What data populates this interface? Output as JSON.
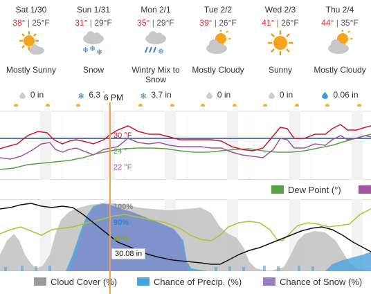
{
  "days": [
    {
      "name": "Sat 1/30",
      "hi": "38°",
      "lo": "25°F",
      "condition": "Mostly Sunny",
      "icon": "sun-cloud-icon",
      "precip": "0 in",
      "precip_icon": "drop-icon"
    },
    {
      "name": "Sun 1/31",
      "hi": "31°",
      "lo": "29°F",
      "condition": "Snow",
      "icon": "snow-cloud-icon",
      "precip": "6.3 in",
      "precip_icon": "snowflake-icon"
    },
    {
      "name": "Mon 2/1",
      "hi": "35°",
      "lo": "29°F",
      "condition": "Wintry Mix to Snow",
      "icon": "wintry-mix-icon",
      "precip": "3.7 in",
      "precip_icon": "snowflake-icon"
    },
    {
      "name": "Tue 2/2",
      "hi": "39°",
      "lo": "26°F",
      "condition": "Mostly Cloudy",
      "icon": "cloud-sun-icon",
      "precip": "0 in",
      "precip_icon": "drop-icon"
    },
    {
      "name": "Wed 2/3",
      "hi": "41°",
      "lo": "26°F",
      "condition": "Sunny",
      "icon": "sun-icon",
      "precip": "0 in",
      "precip_icon": "drop-icon"
    },
    {
      "name": "Thu 2/4",
      "hi": "44°",
      "lo": "35°F",
      "condition": "Mostly Cloudy",
      "icon": "cloud-sun-icon",
      "precip": "0.06 in",
      "precip_icon": "drop-blue-icon"
    }
  ],
  "cursor": {
    "time": "6 PM",
    "temp": "30 °F",
    "feels_like": "24 °",
    "dew_point": "22 °F",
    "cloud": "100%",
    "precip_chance": "90%",
    "humidity": "80%",
    "pressure": "30.08 in"
  },
  "legend_top": [
    {
      "label": "Dew Point (°)",
      "color": "#5aa145"
    },
    {
      "label": "",
      "color": "#a0559e"
    }
  ],
  "legend_bottom": [
    {
      "label": "Cloud Cover (%)",
      "color": "#9a9a9a"
    },
    {
      "label": "Chance of Precip. (%)",
      "color": "#4aa3df"
    },
    {
      "label": "Chance of Snow (%)",
      "color": "#9a7fc0"
    }
  ],
  "colors": {
    "temp": "#c8192e",
    "dew": "#5aa145",
    "feels": "#a0559e",
    "freezing": "#1f4fa3",
    "humidity": "#a4c832",
    "pressure": "#111111"
  }
}
